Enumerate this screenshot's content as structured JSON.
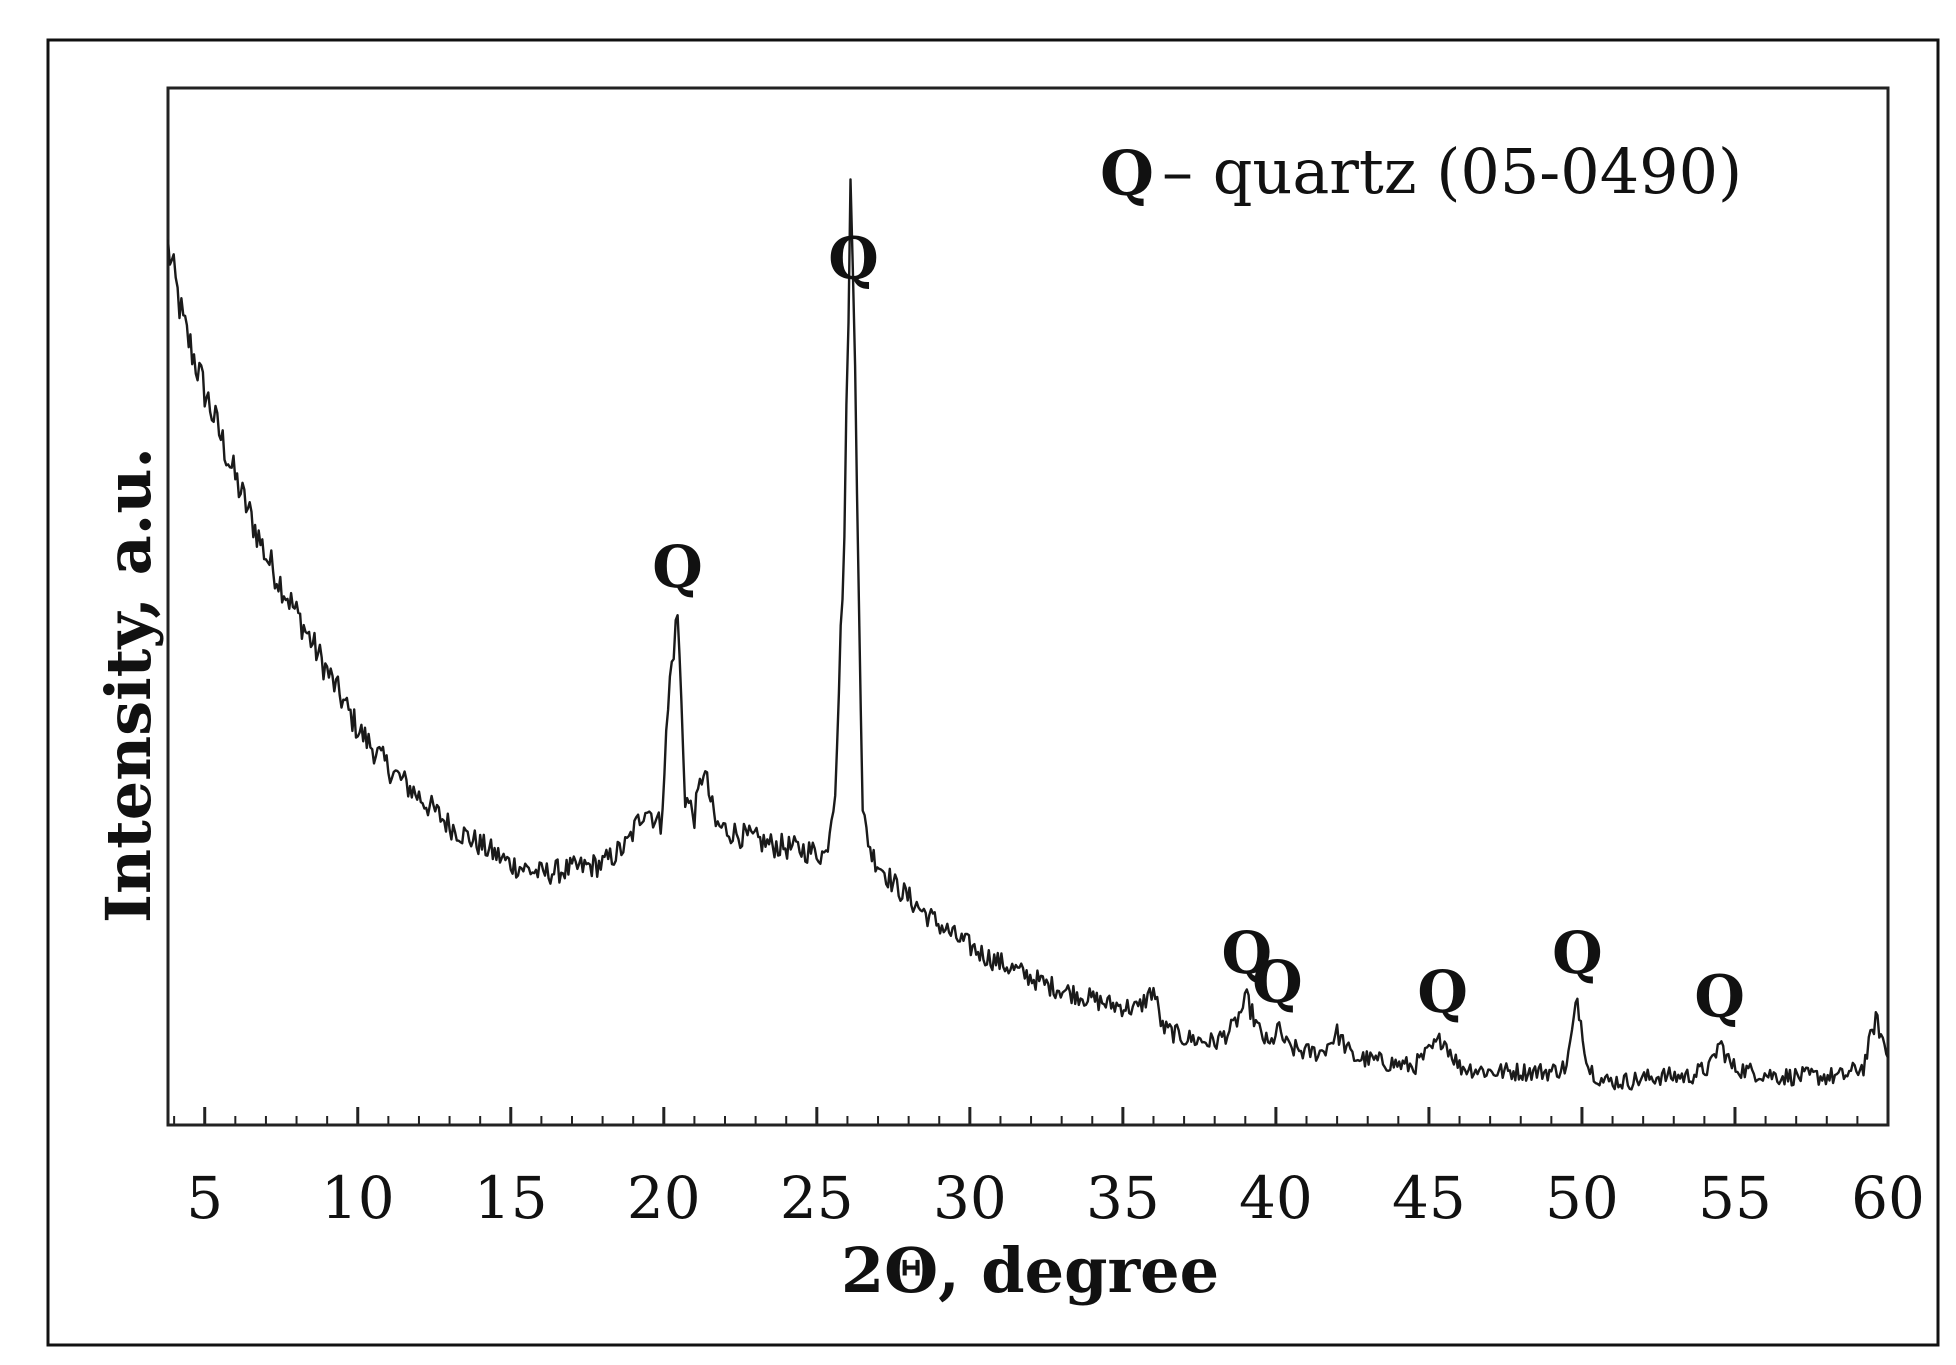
{
  "chart_data": {
    "type": "line",
    "title": "",
    "xlabel": "2Θ, degree",
    "ylabel": "Intensity, a.u.",
    "xlim": [
      3.8,
      60
    ],
    "ylim": [
      0,
      100
    ],
    "y_tick_labels_shown": false,
    "grid": false,
    "x_major_ticks": [
      5,
      10,
      15,
      20,
      25,
      30,
      35,
      40,
      45,
      50,
      55,
      60
    ],
    "x_tick_labels": [
      "5",
      "10",
      "15",
      "20",
      "25",
      "30",
      "35",
      "40",
      "45",
      "50",
      "55",
      "60"
    ],
    "x_minor_step": 1,
    "legend": {
      "placement": "top-right",
      "symbol": "Q",
      "text": "– quartz (05-0490)"
    },
    "series": [
      {
        "x": [
          3.8,
          4.3,
          5.0,
          6.0,
          7.0,
          8.0,
          9.0,
          10.0,
          11.0,
          12.0,
          13.0,
          14.0,
          15.0,
          16.0,
          17.0,
          18.0,
          18.8,
          19.4,
          19.9,
          20.2,
          20.45,
          20.7,
          21.0,
          21.3,
          21.7,
          22.5,
          23.5,
          24.5,
          25.3,
          25.6,
          25.9,
          26.1,
          26.25,
          26.5,
          26.8,
          27.5,
          28.5,
          29.5,
          30.5,
          31.5,
          32.5,
          33.5,
          34.5,
          35.5,
          36.0,
          36.3,
          37.0,
          38.0,
          38.6,
          39.05,
          39.4,
          39.8,
          40.05,
          40.4,
          41.0,
          41.5,
          42.0,
          42.5,
          43.5,
          44.5,
          45.0,
          45.45,
          46.0,
          47.0,
          48.0,
          49.0,
          49.5,
          49.85,
          50.2,
          50.7,
          51.5,
          52.5,
          53.5,
          54.2,
          54.5,
          54.9,
          55.5,
          56.5,
          57.5,
          58.5,
          59.2,
          59.6,
          60.0
        ],
        "y": [
          90,
          82,
          75,
          66,
          58,
          52,
          46,
          40,
          36,
          33,
          30,
          28,
          26,
          25,
          25.5,
          26,
          28,
          32,
          30,
          45,
          52,
          33,
          31,
          36,
          30,
          29,
          28,
          27.5,
          27,
          34,
          60,
          96,
          78,
          31,
          27,
          24,
          21,
          18.5,
          16.5,
          15,
          13.5,
          12.5,
          11.5,
          11,
          13,
          9,
          8,
          7.5,
          9,
          12,
          9,
          7,
          9,
          7,
          6.5,
          6.5,
          8.5,
          6,
          5.5,
          5,
          6.5,
          8,
          5,
          4.5,
          4.5,
          4.5,
          5,
          12,
          5,
          3.5,
          3.5,
          4,
          4,
          5,
          7.5,
          5,
          4.5,
          4,
          4,
          4,
          5,
          10,
          6
        ]
      }
    ],
    "annotations": [
      {
        "text": "Q",
        "x": 26.2
      },
      {
        "text": "Q",
        "x": 20.45
      },
      {
        "text": "Q",
        "x": 39.05
      },
      {
        "text": "Q",
        "x": 40.05
      },
      {
        "text": "Q",
        "x": 45.45
      },
      {
        "text": "Q",
        "x": 49.85
      },
      {
        "text": "Q",
        "x": 54.5
      }
    ]
  }
}
